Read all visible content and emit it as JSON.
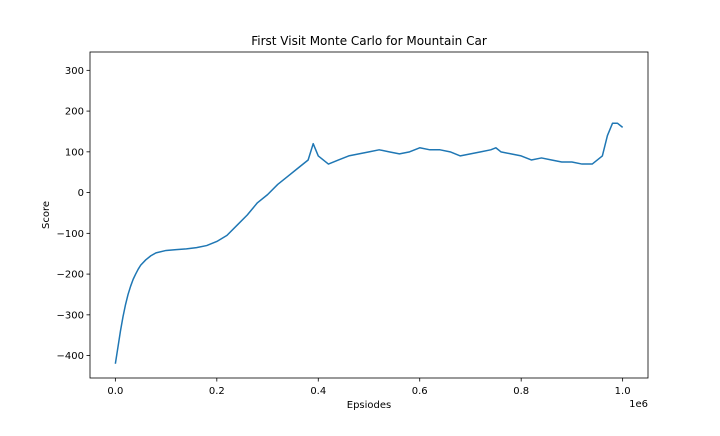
{
  "chart_data": {
    "type": "line",
    "title": "First Visit Monte Carlo for Mountain Car",
    "xlabel": "Epsiodes",
    "ylabel": "Score",
    "x_offset_text": "1e6",
    "xlim": [
      -0.05,
      1.05
    ],
    "ylim": [
      -455,
      345
    ],
    "x_ticks": [
      0.0,
      0.2,
      0.4,
      0.6,
      0.8,
      1.0
    ],
    "x_tick_labels": [
      "0.0",
      "0.2",
      "0.4",
      "0.6",
      "0.8",
      "1.0"
    ],
    "y_ticks": [
      -400,
      -300,
      -200,
      -100,
      0,
      100,
      200,
      300
    ],
    "y_tick_labels": [
      "−400",
      "−300",
      "−200",
      "−100",
      "0",
      "100",
      "200",
      "300"
    ],
    "grid": false,
    "line_color": "#1f77b4",
    "series": [
      {
        "name": "",
        "x": [
          0.0,
          0.005,
          0.01,
          0.015,
          0.02,
          0.025,
          0.03,
          0.035,
          0.04,
          0.045,
          0.05,
          0.06,
          0.07,
          0.08,
          0.1,
          0.12,
          0.14,
          0.16,
          0.18,
          0.2,
          0.22,
          0.24,
          0.26,
          0.28,
          0.3,
          0.32,
          0.34,
          0.36,
          0.38,
          0.39,
          0.4,
          0.42,
          0.44,
          0.46,
          0.48,
          0.5,
          0.52,
          0.54,
          0.56,
          0.58,
          0.6,
          0.62,
          0.64,
          0.66,
          0.68,
          0.7,
          0.72,
          0.74,
          0.75,
          0.76,
          0.78,
          0.8,
          0.82,
          0.84,
          0.86,
          0.88,
          0.9,
          0.92,
          0.94,
          0.96,
          0.97,
          0.98,
          0.99,
          1.0
        ],
        "y": [
          -420,
          -380,
          -340,
          -305,
          -275,
          -250,
          -230,
          -213,
          -200,
          -188,
          -178,
          -165,
          -155,
          -148,
          -142,
          -140,
          -138,
          -135,
          -130,
          -120,
          -105,
          -80,
          -55,
          -25,
          -5,
          20,
          40,
          60,
          80,
          120,
          90,
          70,
          80,
          90,
          95,
          100,
          105,
          100,
          95,
          100,
          110,
          105,
          105,
          100,
          90,
          95,
          100,
          105,
          110,
          100,
          95,
          90,
          80,
          85,
          80,
          75,
          75,
          70,
          70,
          90,
          140,
          170,
          170,
          160
        ]
      }
    ]
  }
}
